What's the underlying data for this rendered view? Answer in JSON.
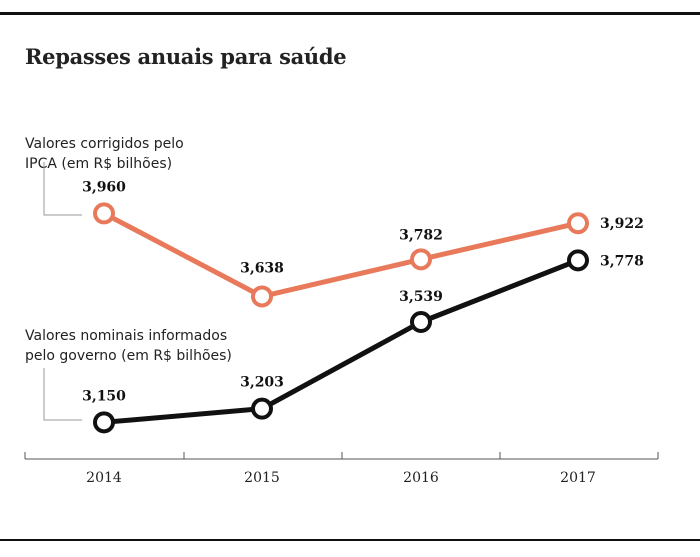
{
  "page": {
    "title": "Repasses anuais para saúde"
  },
  "chart_data": {
    "type": "line",
    "title": "Repasses anuais para saúde",
    "xlabel": "",
    "ylabel": "",
    "categories": [
      "2014",
      "2015",
      "2016",
      "2017"
    ],
    "series": [
      {
        "name": "Valores corrigidos pelo IPCA (em R$ bilhões)",
        "name_lines": [
          "Valores corrigidos pelo",
          "IPCA (em R$ bilhões)"
        ],
        "values": [
          3.96,
          3.638,
          3.782,
          3.922
        ],
        "labels": [
          "3,960",
          "3,638",
          "3,782",
          "3,922"
        ],
        "color": "#e8795a"
      },
      {
        "name": "Valores nominais informados pelo governo (em R$ bilhões)",
        "name_lines": [
          "Valores nominais informados",
          "pelo governo (em R$ bilhões)"
        ],
        "values": [
          3.15,
          3.203,
          3.539,
          3.778
        ],
        "labels": [
          "3,150",
          "3,203",
          "3,539",
          "3,778"
        ],
        "color": "#111111"
      }
    ],
    "ylim": [
      3.0,
      4.1
    ],
    "grid": false,
    "legend": "inline-left"
  }
}
